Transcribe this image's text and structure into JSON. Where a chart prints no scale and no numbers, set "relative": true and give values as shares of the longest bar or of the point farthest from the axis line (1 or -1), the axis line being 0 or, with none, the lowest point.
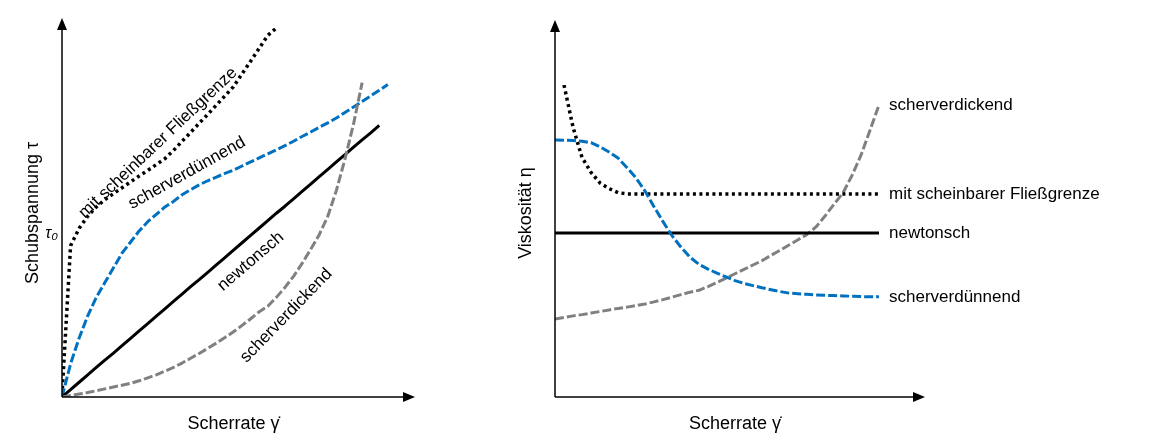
{
  "chart_data": [
    {
      "type": "line",
      "relative": true,
      "xlabel": "Scherrate γ̇",
      "ylabel": "Schubspannung τ",
      "annotations": [
        "τ₀"
      ],
      "categories": [
        null,
        null,
        null,
        null,
        null,
        null,
        null,
        null,
        null,
        null,
        null,
        null,
        null,
        null,
        null,
        null,
        null,
        null,
        null,
        null,
        null,
        null,
        null,
        null,
        null,
        null,
        null,
        null,
        null,
        null,
        null,
        null,
        null,
        null,
        null,
        null,
        null,
        null,
        null,
        null,
        null
      ],
      "series": [
        {
          "name": "mit scheinbarer Fließgrenze",
          "color": "#000000",
          "line_style": "dotted",
          "values": [
            0.005,
            0.41,
            0.457,
            0.49,
            0.515,
            0.535,
            0.551,
            0.567,
            0.583,
            0.599,
            0.614,
            0.63,
            0.646,
            0.668,
            0.693,
            0.717,
            0.742,
            0.766,
            0.791,
            0.816,
            0.841,
            0.876,
            0.91,
            0.945,
            0.98,
            1.0,
            null,
            null,
            null,
            null,
            null,
            null,
            null,
            null,
            null,
            null,
            null,
            null,
            null,
            null,
            null
          ]
        },
        {
          "name": "scherverdünnend",
          "color": "#0070c0",
          "line_style": "dashed",
          "values": [
            0.0,
            0.09,
            0.16,
            0.22,
            0.27,
            0.31,
            0.35,
            0.39,
            0.42,
            0.45,
            0.475,
            0.495,
            0.515,
            0.53,
            0.548,
            0.562,
            0.575,
            0.586,
            0.596,
            0.606,
            0.615,
            0.626,
            0.637,
            0.648,
            0.659,
            0.67,
            0.681,
            0.693,
            0.706,
            0.718,
            0.731,
            0.743,
            0.756,
            0.771,
            0.786,
            0.801,
            0.816,
            0.831,
            0.847,
            null,
            null
          ]
        },
        {
          "name": "newtonsch",
          "color": "#000000",
          "line_style": "solid",
          "values": [
            0,
            0.02,
            0.04,
            0.06,
            0.08,
            0.1,
            0.119,
            0.139,
            0.159,
            0.179,
            0.199,
            0.219,
            0.239,
            0.259,
            0.279,
            0.299,
            0.318,
            0.338,
            0.358,
            0.378,
            0.398,
            0.418,
            0.438,
            0.458,
            0.478,
            0.498,
            0.517,
            0.537,
            0.557,
            0.577,
            0.597,
            0.617,
            0.637,
            0.657,
            0.677,
            0.697,
            0.716,
            0.736,
            null,
            null,
            null
          ]
        },
        {
          "name": "scherverdickend",
          "color": "#808080",
          "line_style": "dashed",
          "values": [
            0,
            0.004,
            0.008,
            0.012,
            0.017,
            0.022,
            0.027,
            0.032,
            0.037,
            0.044,
            0.052,
            0.06,
            0.07,
            0.08,
            0.092,
            0.105,
            0.118,
            0.132,
            0.146,
            0.161,
            0.177,
            0.194,
            0.212,
            0.231,
            0.246,
            0.27,
            0.297,
            0.327,
            0.362,
            0.4,
            0.44,
            0.49,
            0.56,
            0.645,
            0.74,
            0.852,
            null,
            null,
            null,
            null,
            null
          ]
        }
      ]
    },
    {
      "type": "line",
      "relative": true,
      "xlabel": "Scherrate γ̇",
      "ylabel": "Viskosität η",
      "categories": [
        null,
        null,
        null,
        null,
        null,
        null,
        null,
        null,
        null,
        null,
        null,
        null,
        null,
        null,
        null,
        null,
        null,
        null,
        null,
        null,
        null,
        null,
        null,
        null,
        null,
        null,
        null,
        null,
        null,
        null,
        null,
        null,
        null,
        null,
        null,
        null,
        null,
        null,
        null,
        null,
        null
      ],
      "series": [
        {
          "name": "scherverdickend",
          "color": "#808080",
          "line_style": "dashed",
          "values": [
            0.25,
            0.255,
            0.26,
            0.264,
            0.269,
            0.274,
            0.279,
            0.284,
            0.288,
            0.293,
            0.298,
            0.305,
            0.312,
            0.32,
            0.328,
            0.336,
            0.342,
            0.354,
            0.367,
            0.381,
            0.395,
            0.409,
            0.423,
            0.437,
            0.454,
            0.47,
            0.487,
            0.504,
            0.521,
            0.545,
            0.58,
            0.618,
            0.654,
            0.71,
            0.775,
            0.855,
            0.936,
            null,
            null,
            null,
            null
          ]
        },
        {
          "name": "mit scheinbarer Fließgrenze",
          "color": "#000000",
          "line_style": "dotted",
          "values": [
            null,
            1.0,
            0.865,
            0.768,
            0.72,
            0.686,
            0.668,
            0.655,
            0.651,
            0.651,
            0.651,
            0.651,
            0.651,
            0.651,
            0.651,
            0.651,
            0.651,
            0.651,
            0.651,
            0.651,
            0.651,
            0.651,
            0.651,
            0.651,
            0.651,
            0.651,
            0.651,
            0.651,
            0.651,
            0.651,
            0.651,
            0.651,
            0.651,
            0.651,
            0.651,
            0.651,
            0.651,
            null,
            null,
            null,
            null
          ]
        },
        {
          "name": "newtonsch",
          "color": "#000000",
          "line_style": "solid",
          "values": [
            0.526,
            0.526,
            0.526,
            0.526,
            0.526,
            0.526,
            0.526,
            0.526,
            0.526,
            0.526,
            0.526,
            0.526,
            0.526,
            0.526,
            0.526,
            0.526,
            0.526,
            0.526,
            0.526,
            0.526,
            0.526,
            0.526,
            0.526,
            0.526,
            0.526,
            0.526,
            0.526,
            0.526,
            0.526,
            0.526,
            0.526,
            0.526,
            0.526,
            0.526,
            0.526,
            0.526,
            0.526,
            null,
            null,
            null,
            null
          ]
        },
        {
          "name": "scherverdünnend",
          "color": "#0070c0",
          "line_style": "dashed",
          "values": [
            0.824,
            0.823,
            0.822,
            0.82,
            0.815,
            0.802,
            0.785,
            0.766,
            0.735,
            0.702,
            0.66,
            0.61,
            0.562,
            0.517,
            0.48,
            0.448,
            0.425,
            0.41,
            0.397,
            0.385,
            0.373,
            0.364,
            0.357,
            0.35,
            0.344,
            0.338,
            0.333,
            0.331,
            0.329,
            0.327,
            0.326,
            0.325,
            0.324,
            0.323,
            0.322,
            0.321,
            0.321,
            null,
            null,
            null,
            null
          ]
        }
      ]
    }
  ]
}
